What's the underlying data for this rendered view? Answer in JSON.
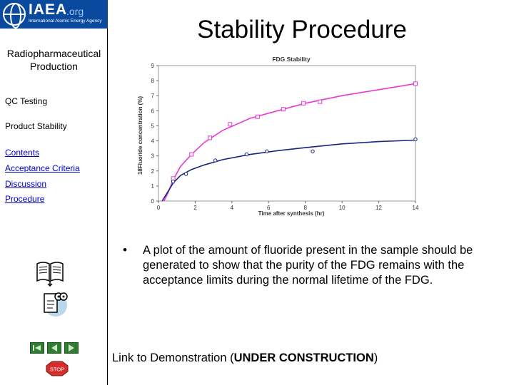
{
  "logo": {
    "name": "IAEA",
    "org": ".org",
    "agency": "International Atomic Energy Agency"
  },
  "sidebar": {
    "section_title": "Radiopharmaceutical Production",
    "qc_testing": "QC Testing",
    "product_stability": "Product Stability",
    "links": [
      "Contents",
      "Acceptance Criteria",
      "Discussion",
      "Procedure"
    ],
    "stop_label": "STOP"
  },
  "main": {
    "title": "Stability Procedure",
    "bullet": "•",
    "bullet_text": "A plot of the amount of fluoride present in the sample should be generated to show that the purity of the FDG remains with the acceptance limits during the normal lifetime of the FDG.",
    "demo_prefix": "Link to Demonstration (",
    "demo_strong": "UNDER CONSTRUCTION",
    "demo_suffix": ")"
  },
  "colors": {
    "logo_bg": "#0a4a9e",
    "link": "#0000cc",
    "series_a": "#e83ad0",
    "series_b": "#1a237e",
    "nav_green": "#2e7d32"
  },
  "chart_data": {
    "type": "scatter",
    "title": "FDG Stability",
    "xlabel": "Time after synthesis (hr)",
    "ylabel": "18Fluoride concentration (%)",
    "xlim": [
      0,
      14
    ],
    "ylim": [
      0,
      9
    ],
    "xticks": [
      0,
      2,
      4,
      6,
      8,
      10,
      12,
      14
    ],
    "yticks": [
      0,
      1,
      2,
      3,
      4,
      5,
      6,
      7,
      8,
      9
    ],
    "grid": false,
    "legend": "none",
    "series": [
      {
        "marker": "square",
        "color": "#e83ad0",
        "points": [
          [
            0.8,
            1.5
          ],
          [
            1.8,
            3.1
          ],
          [
            2.8,
            4.2
          ],
          [
            3.9,
            5.1
          ],
          [
            5.4,
            5.6
          ],
          [
            6.8,
            6.1
          ],
          [
            7.9,
            6.5
          ],
          [
            8.8,
            6.6
          ],
          [
            14,
            7.8
          ]
        ],
        "fit": [
          [
            0.3,
            0.0
          ],
          [
            0.5,
            0.5
          ],
          [
            0.8,
            1.4
          ],
          [
            1.2,
            2.3
          ],
          [
            1.8,
            3.1
          ],
          [
            2.5,
            3.9
          ],
          [
            3.5,
            4.7
          ],
          [
            5,
            5.5
          ],
          [
            6.5,
            6.0
          ],
          [
            8,
            6.5
          ],
          [
            10,
            7.0
          ],
          [
            12,
            7.4
          ],
          [
            14,
            7.8
          ]
        ]
      },
      {
        "marker": "circle",
        "color": "#1a237e",
        "points": [
          [
            0.8,
            1.3
          ],
          [
            1.5,
            1.8
          ],
          [
            3.1,
            2.7
          ],
          [
            4.8,
            3.1
          ],
          [
            5.9,
            3.3
          ],
          [
            8.4,
            3.3
          ],
          [
            14,
            4.1
          ]
        ],
        "fit": [
          [
            0.2,
            0.0
          ],
          [
            0.5,
            0.6
          ],
          [
            0.8,
            1.2
          ],
          [
            1.2,
            1.7
          ],
          [
            1.8,
            2.1
          ],
          [
            2.5,
            2.4
          ],
          [
            3.5,
            2.75
          ],
          [
            5,
            3.1
          ],
          [
            6.5,
            3.35
          ],
          [
            8,
            3.55
          ],
          [
            10,
            3.8
          ],
          [
            12,
            3.95
          ],
          [
            14,
            4.05
          ]
        ]
      }
    ]
  }
}
